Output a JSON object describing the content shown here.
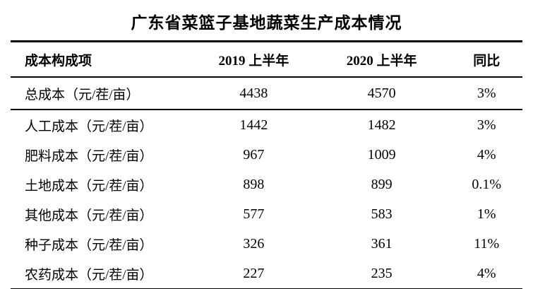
{
  "title": "广东省菜篮子基地蔬菜生产成本情况",
  "colors": {
    "text": "#000000",
    "background": "#ffffff",
    "border": "#000000"
  },
  "table": {
    "columns": [
      "成本构成项",
      "2019 上半年",
      "2020 上半年",
      "同比"
    ],
    "rows": [
      {
        "label": "总成本（元/茬/亩）",
        "y2019": "4438",
        "y2020": "4570",
        "yoy": "3%"
      },
      {
        "label": "人工成本（元/茬/亩）",
        "y2019": "1442",
        "y2020": "1482",
        "yoy": "3%"
      },
      {
        "label": "肥料成本（元/茬/亩）",
        "y2019": "967",
        "y2020": "1009",
        "yoy": "4%"
      },
      {
        "label": "土地成本（元/茬/亩）",
        "y2019": "898",
        "y2020": "899",
        "yoy": "0.1%"
      },
      {
        "label": "其他成本（元/茬/亩）",
        "y2019": "577",
        "y2020": "583",
        "yoy": "1%"
      },
      {
        "label": "种子成本（元/茬/亩）",
        "y2019": "326",
        "y2020": "361",
        "yoy": "11%"
      },
      {
        "label": "农药成本（元/茬/亩）",
        "y2019": "227",
        "y2020": "235",
        "yoy": "4%"
      }
    ]
  }
}
